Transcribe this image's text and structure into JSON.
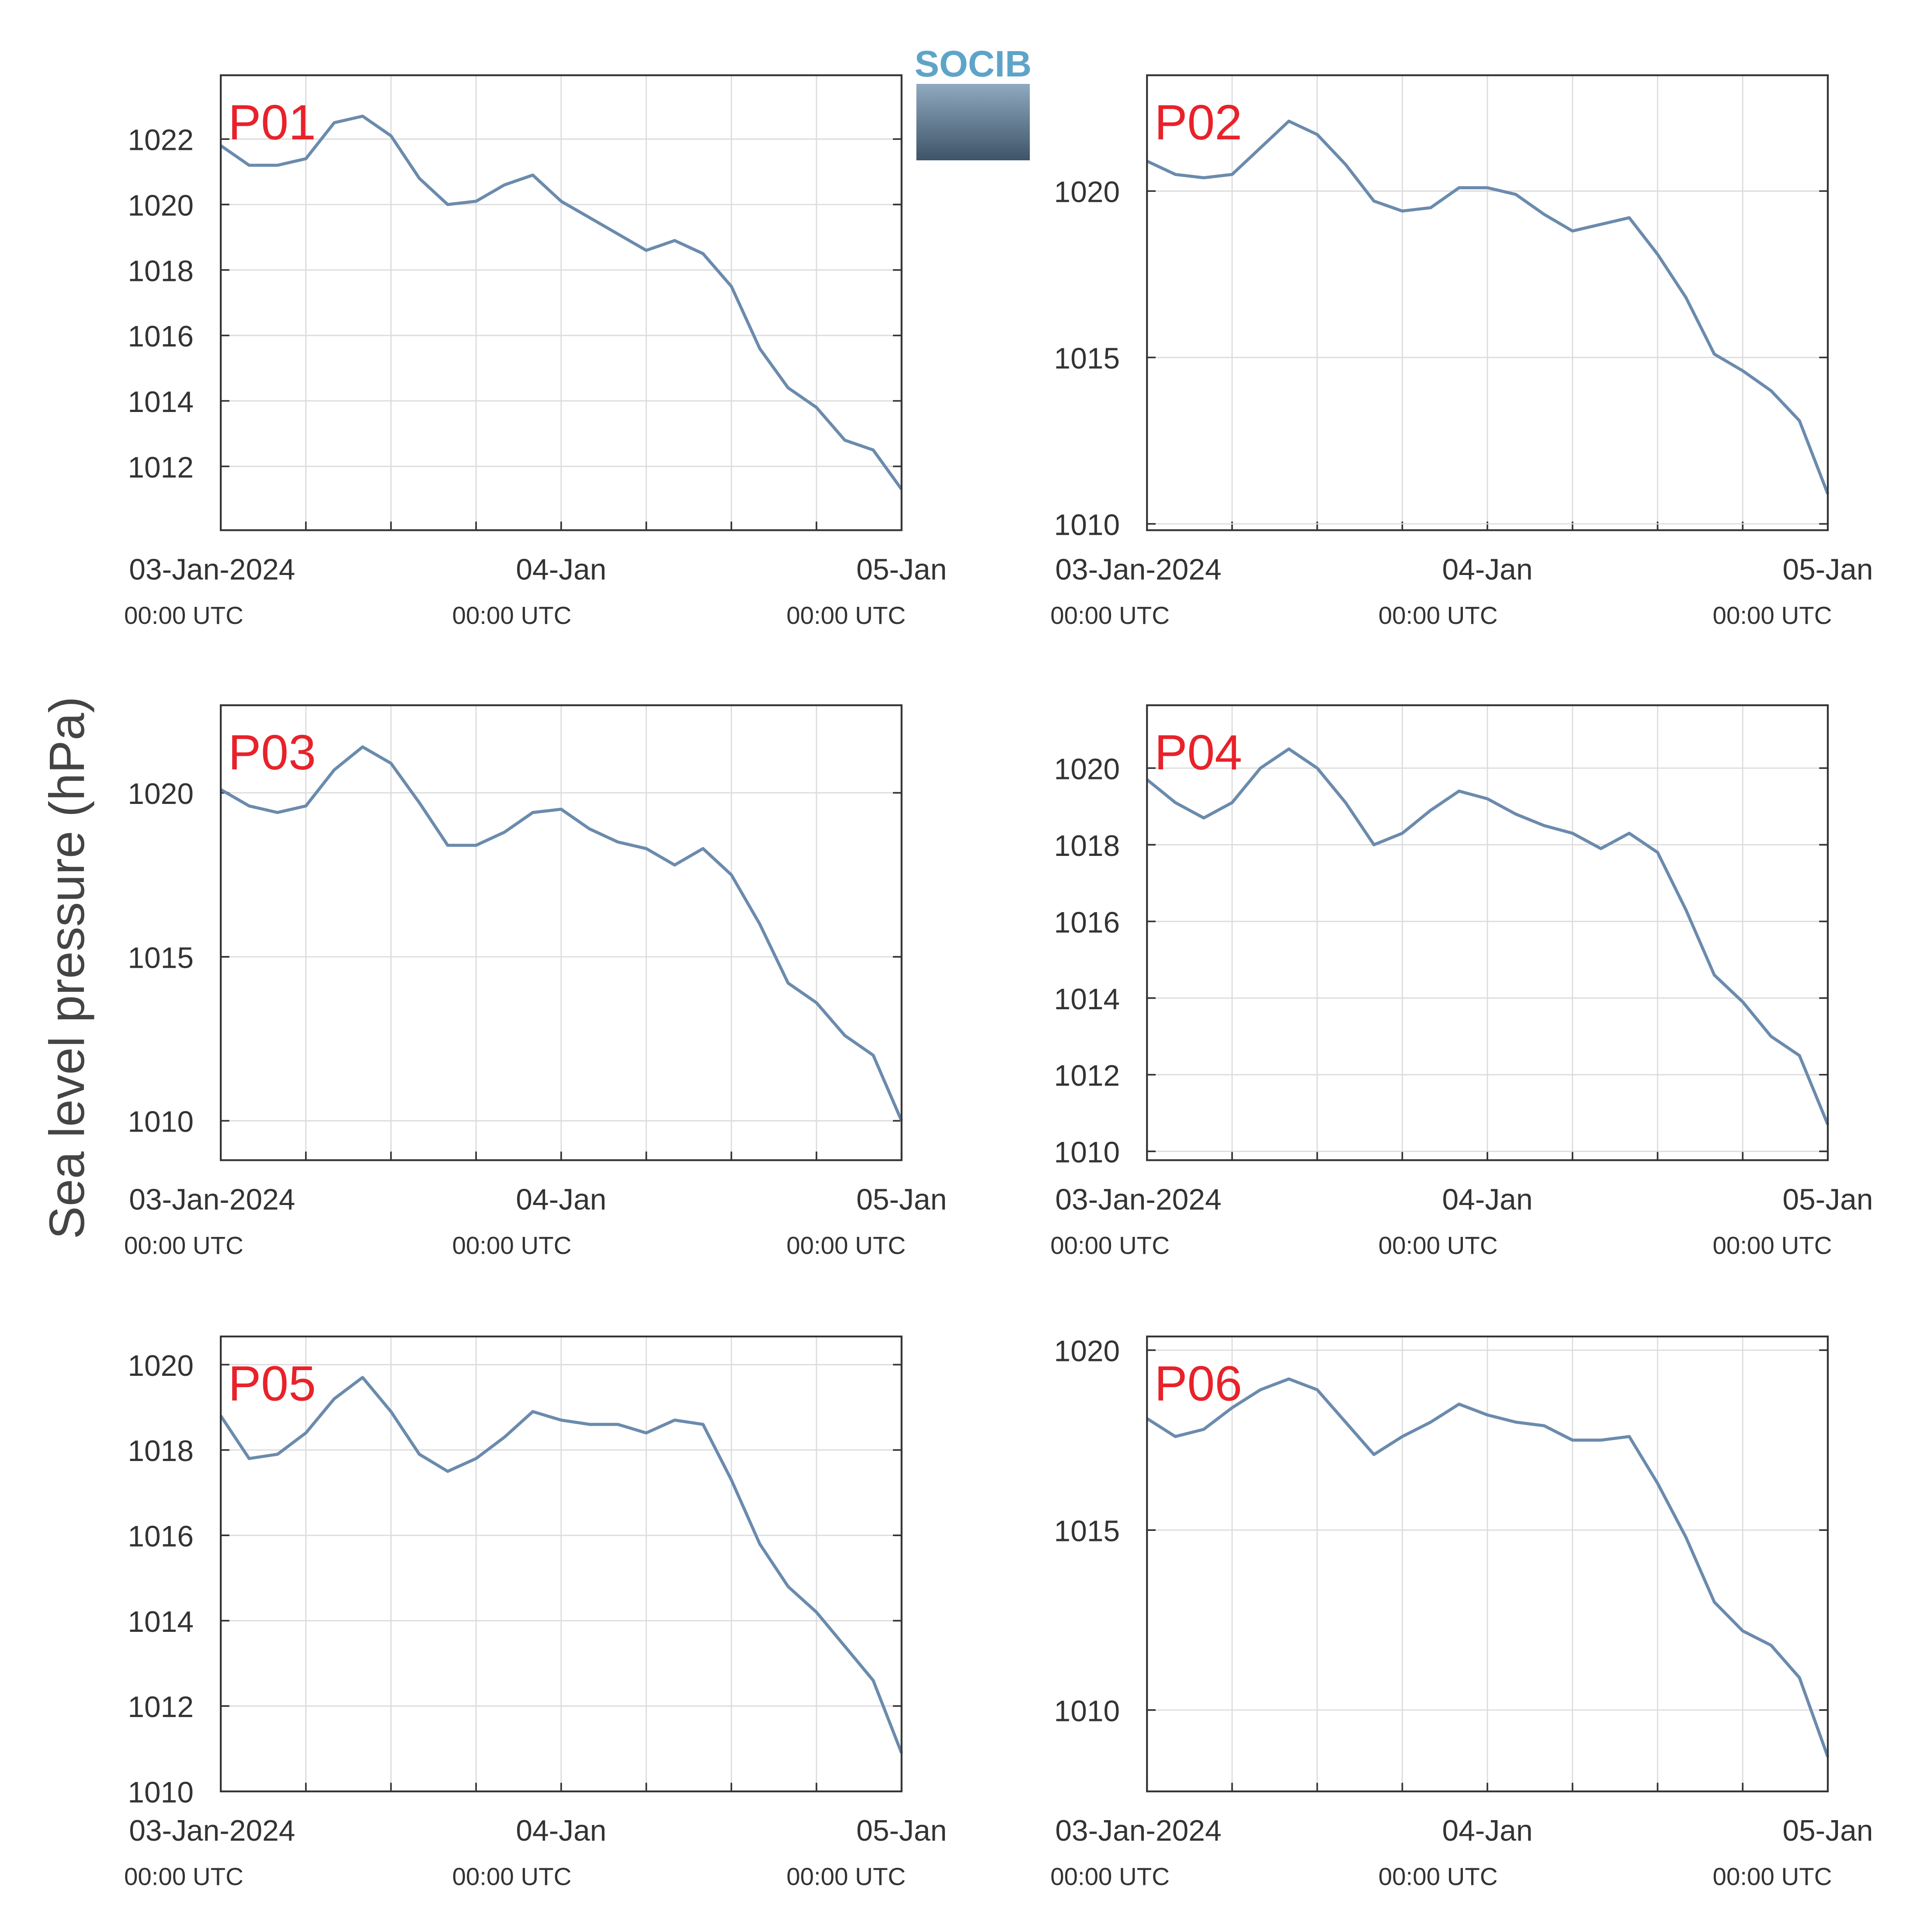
{
  "ylabel": "Sea level pressure (hPa)",
  "logo": "SOCIB",
  "chart_data": [
    {
      "type": "line",
      "title": "P01",
      "color": "#6b8bad",
      "grid": true,
      "x": [
        0,
        2,
        4,
        6,
        8,
        10,
        12,
        14,
        16,
        18,
        20,
        22,
        24,
        26,
        28,
        30,
        32,
        34,
        36,
        38,
        40,
        42,
        44,
        46,
        48
      ],
      "values": [
        1021.8,
        1021.2,
        1021.2,
        1021.4,
        1022.5,
        1022.7,
        1022.1,
        1020.8,
        1020.0,
        1020.1,
        1020.6,
        1020.9,
        1020.1,
        1019.6,
        1019.1,
        1018.6,
        1018.9,
        1018.5,
        1017.5,
        1015.6,
        1014.4,
        1013.8,
        1012.8,
        1012.5,
        1011.3
      ],
      "xlim": [
        0,
        48
      ],
      "xticks": [
        {
          "value": 0,
          "label": "03-Jan-2024",
          "sublabel": "00:00 UTC"
        },
        {
          "value": 24,
          "label": "04-Jan",
          "sublabel": "00:00 UTC"
        },
        {
          "value": 48,
          "label": "05-Jan",
          "sublabel": "00:00 UTC"
        }
      ],
      "x_minor_ticks": [
        6,
        12,
        18,
        30,
        36,
        42
      ],
      "ylim": [
        1010.05,
        1023.95
      ],
      "yticks": [
        1012,
        1014,
        1016,
        1018,
        1020,
        1022
      ]
    },
    {
      "type": "line",
      "title": "P02",
      "color": "#6b8bad",
      "grid": true,
      "x": [
        0,
        2,
        4,
        6,
        8,
        10,
        12,
        14,
        16,
        18,
        20,
        22,
        24,
        26,
        28,
        30,
        32,
        34,
        36,
        38,
        40,
        42,
        44,
        46,
        48
      ],
      "values": [
        1020.9,
        1020.5,
        1020.4,
        1020.5,
        1021.3,
        1022.1,
        1021.7,
        1020.8,
        1019.7,
        1019.4,
        1019.5,
        1020.1,
        1020.1,
        1019.9,
        1019.3,
        1018.8,
        1019.0,
        1019.2,
        1018.1,
        1016.8,
        1015.1,
        1014.6,
        1014.0,
        1013.1,
        1010.9
      ],
      "xlim": [
        0,
        48
      ],
      "xticks": [
        {
          "value": 0,
          "label": "03-Jan-2024",
          "sublabel": "00:00 UTC"
        },
        {
          "value": 24,
          "label": "04-Jan",
          "sublabel": "00:00 UTC"
        },
        {
          "value": 48,
          "label": "05-Jan",
          "sublabel": "00:00 UTC"
        }
      ],
      "x_minor_ticks": [
        6,
        12,
        18,
        30,
        36,
        42
      ],
      "ylim": [
        1009.81,
        1023.48
      ],
      "yticks": [
        1010,
        1015,
        1020
      ]
    },
    {
      "type": "line",
      "title": "P03",
      "color": "#6b8bad",
      "grid": true,
      "x": [
        0,
        2,
        4,
        6,
        8,
        10,
        12,
        14,
        16,
        18,
        20,
        22,
        24,
        26,
        28,
        30,
        32,
        34,
        36,
        38,
        40,
        42,
        44,
        46,
        48
      ],
      "values": [
        1020.1,
        1019.6,
        1019.4,
        1019.6,
        1020.7,
        1021.4,
        1020.9,
        1019.7,
        1018.4,
        1018.4,
        1018.8,
        1019.4,
        1019.5,
        1018.9,
        1018.5,
        1018.3,
        1017.8,
        1018.3,
        1017.5,
        1016.0,
        1014.2,
        1013.6,
        1012.6,
        1012.0,
        1010.0
      ],
      "xlim": [
        0,
        48
      ],
      "xticks": [
        {
          "value": 0,
          "label": "03-Jan-2024",
          "sublabel": "00:00 UTC"
        },
        {
          "value": 24,
          "label": "04-Jan",
          "sublabel": "00:00 UTC"
        },
        {
          "value": 48,
          "label": "05-Jan",
          "sublabel": "00:00 UTC"
        }
      ],
      "x_minor_ticks": [
        6,
        12,
        18,
        30,
        36,
        42
      ],
      "ylim": [
        1008.8,
        1022.67
      ],
      "yticks": [
        1010,
        1015,
        1020
      ]
    },
    {
      "type": "line",
      "title": "P04",
      "color": "#6b8bad",
      "grid": true,
      "x": [
        0,
        2,
        4,
        6,
        8,
        10,
        12,
        14,
        16,
        18,
        20,
        22,
        24,
        26,
        28,
        30,
        32,
        34,
        36,
        38,
        40,
        42,
        44,
        46,
        48
      ],
      "values": [
        1019.7,
        1019.1,
        1018.7,
        1019.1,
        1020.0,
        1020.5,
        1020.0,
        1019.1,
        1018.0,
        1018.3,
        1018.9,
        1019.4,
        1019.2,
        1018.8,
        1018.5,
        1018.3,
        1017.9,
        1018.3,
        1017.8,
        1016.3,
        1014.6,
        1013.9,
        1013.0,
        1012.5,
        1010.7
      ],
      "xlim": [
        0,
        48
      ],
      "xticks": [
        {
          "value": 0,
          "label": "03-Jan-2024",
          "sublabel": "00:00 UTC"
        },
        {
          "value": 24,
          "label": "04-Jan",
          "sublabel": "00:00 UTC"
        },
        {
          "value": 48,
          "label": "05-Jan",
          "sublabel": "00:00 UTC"
        }
      ],
      "x_minor_ticks": [
        6,
        12,
        18,
        30,
        36,
        42
      ],
      "ylim": [
        1009.77,
        1021.64
      ],
      "yticks": [
        1010,
        1012,
        1014,
        1016,
        1018,
        1020
      ]
    },
    {
      "type": "line",
      "title": "P05",
      "color": "#6b8bad",
      "grid": true,
      "x": [
        0,
        2,
        4,
        6,
        8,
        10,
        12,
        14,
        16,
        18,
        20,
        22,
        24,
        26,
        28,
        30,
        32,
        34,
        36,
        38,
        40,
        42,
        44,
        46,
        48
      ],
      "values": [
        1018.8,
        1017.8,
        1017.9,
        1018.4,
        1019.2,
        1019.7,
        1018.9,
        1017.9,
        1017.5,
        1017.8,
        1018.3,
        1018.9,
        1018.7,
        1018.6,
        1018.6,
        1018.4,
        1018.7,
        1018.6,
        1017.3,
        1015.8,
        1014.8,
        1014.2,
        1013.4,
        1012.6,
        1010.9
      ],
      "xlim": [
        0,
        48
      ],
      "xticks": [
        {
          "value": 0,
          "label": "03-Jan-2024",
          "sublabel": "00:00 UTC"
        },
        {
          "value": 24,
          "label": "04-Jan",
          "sublabel": "00:00 UTC"
        },
        {
          "value": 48,
          "label": "05-Jan",
          "sublabel": "00:00 UTC"
        }
      ],
      "x_minor_ticks": [
        6,
        12,
        18,
        30,
        36,
        42
      ],
      "ylim": [
        1010,
        1020.66
      ],
      "yticks": [
        1010,
        1012,
        1014,
        1016,
        1018,
        1020
      ]
    },
    {
      "type": "line",
      "title": "P06",
      "color": "#6b8bad",
      "grid": true,
      "x": [
        0,
        2,
        4,
        6,
        8,
        10,
        12,
        14,
        16,
        18,
        20,
        22,
        24,
        26,
        28,
        30,
        32,
        34,
        36,
        38,
        40,
        42,
        44,
        46,
        48
      ],
      "values": [
        1018.1,
        1017.6,
        1017.8,
        1018.4,
        1018.9,
        1019.2,
        1018.9,
        1018.0,
        1017.1,
        1017.6,
        1018.0,
        1018.5,
        1018.2,
        1018.0,
        1017.9,
        1017.5,
        1017.5,
        1017.6,
        1016.3,
        1014.8,
        1013.0,
        1012.2,
        1011.8,
        1010.9,
        1008.7
      ],
      "xlim": [
        0,
        48
      ],
      "xticks": [
        {
          "value": 0,
          "label": "03-Jan-2024",
          "sublabel": "00:00 UTC"
        },
        {
          "value": 24,
          "label": "04-Jan",
          "sublabel": "00:00 UTC"
        },
        {
          "value": 48,
          "label": "05-Jan",
          "sublabel": "00:00 UTC"
        }
      ],
      "x_minor_ticks": [
        6,
        12,
        18,
        30,
        36,
        42
      ],
      "ylim": [
        1007.74,
        1020.38
      ],
      "yticks": [
        1010,
        1015,
        1020
      ]
    }
  ]
}
